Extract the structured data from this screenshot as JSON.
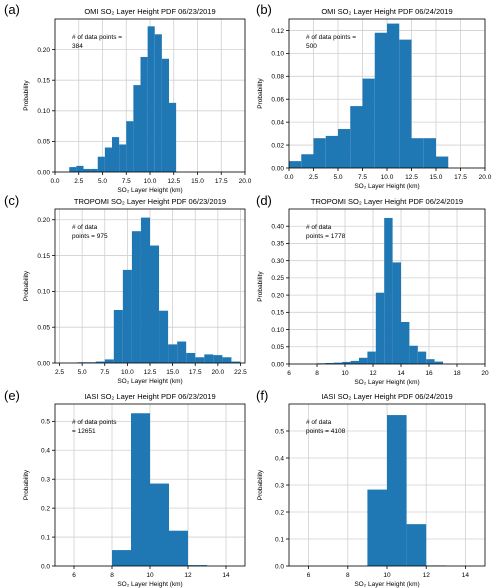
{
  "figure": {
    "x_axis_label": "SO₂ Layer Height (km)",
    "y_axis_label": "Probability"
  },
  "chart_data": [
    {
      "panel_label": "(a)",
      "type": "bar",
      "title": "OMI SO₂ Layer Height PDF 06/23/2019",
      "annotation": [
        "# of data points =",
        "384"
      ],
      "xlim": [
        0,
        20
      ],
      "ylim": [
        0,
        0.25
      ],
      "xticks": [
        0,
        2.5,
        5,
        7.5,
        10,
        12.5,
        15,
        17.5,
        20
      ],
      "xtick_labels": [
        "0.0",
        "2.5",
        "5.0",
        "7.5",
        "10.0",
        "12.5",
        "15.0",
        "17.5",
        "20.0"
      ],
      "yticks": [
        0,
        0.05,
        0.1,
        0.15,
        0.2
      ],
      "ytick_labels": [
        "0.00",
        "0.05",
        "0.10",
        "0.15",
        "0.20"
      ],
      "bin_width": 0.75,
      "bin_start": [
        1.5,
        2.25,
        3.0,
        3.75,
        4.5,
        5.25,
        6.0,
        6.75,
        7.5,
        8.25,
        9.0,
        9.75,
        10.5,
        11.25,
        12.0
      ],
      "values": [
        0.008,
        0.01,
        0.005,
        0.005,
        0.025,
        0.04,
        0.057,
        0.045,
        0.083,
        0.142,
        0.188,
        0.238,
        0.225,
        0.185,
        0.113
      ]
    },
    {
      "panel_label": "(b)",
      "type": "bar",
      "title": "OMI SO₂ Layer Height PDF 06/24/2019",
      "annotation": [
        "# of data points =",
        "500"
      ],
      "xlim": [
        0,
        20
      ],
      "ylim": [
        0,
        0.13
      ],
      "xticks": [
        0,
        2.5,
        5,
        7.5,
        10,
        12.5,
        15,
        17.5,
        20
      ],
      "xtick_labels": [
        "0.0",
        "2.5",
        "5.0",
        "7.5",
        "10.0",
        "12.5",
        "15.0",
        "17.5",
        "20.0"
      ],
      "yticks": [
        0,
        0.02,
        0.04,
        0.06,
        0.08,
        0.1,
        0.12
      ],
      "ytick_labels": [
        "0.00",
        "0.02",
        "0.04",
        "0.06",
        "0.08",
        "0.10",
        "0.12"
      ],
      "bin_width": 1.25,
      "bin_start": [
        0.0,
        1.25,
        2.5,
        3.75,
        5.0,
        6.25,
        7.5,
        8.75,
        10.0,
        11.25,
        12.5,
        13.75,
        15.0
      ],
      "values": [
        0.006,
        0.012,
        0.026,
        0.028,
        0.034,
        0.054,
        0.078,
        0.118,
        0.126,
        0.112,
        0.026,
        0.026,
        0.01
      ]
    },
    {
      "panel_label": "(c)",
      "type": "bar",
      "title": "TROPOMI SO₂ Layer Height PDF 06/23/2019",
      "annotation": [
        "# of data",
        "points = 975"
      ],
      "xlim": [
        2,
        23
      ],
      "ylim": [
        0,
        0.215
      ],
      "xticks": [
        2.5,
        5,
        7.5,
        10,
        12.5,
        15,
        17.5,
        20,
        22.5
      ],
      "xtick_labels": [
        "2.5",
        "5.0",
        "7.5",
        "10.0",
        "12.5",
        "15.0",
        "17.5",
        "20.0",
        "22.5"
      ],
      "yticks": [
        0,
        0.05,
        0.1,
        0.15,
        0.2
      ],
      "ytick_labels": [
        "0.00",
        "0.05",
        "0.10",
        "0.15",
        "0.20"
      ],
      "bin_width": 1.0,
      "bin_start": [
        4.5,
        5.5,
        6.5,
        7.5,
        8.5,
        9.5,
        10.5,
        11.5,
        12.5,
        13.5,
        14.5,
        15.5,
        16.5,
        17.5,
        18.5,
        19.5,
        20.5,
        21.5
      ],
      "values": [
        0.001,
        0.001,
        0.002,
        0.005,
        0.074,
        0.13,
        0.184,
        0.203,
        0.164,
        0.073,
        0.026,
        0.03,
        0.014,
        0.008,
        0.012,
        0.011,
        0.008,
        0.002
      ]
    },
    {
      "panel_label": "(d)",
      "type": "bar",
      "title": "TROPOMI SO₂ Layer Height PDF 06/24/2019",
      "annotation": [
        "# of data",
        "points = 1778"
      ],
      "xlim": [
        6,
        20
      ],
      "ylim": [
        0,
        0.45
      ],
      "xticks": [
        6,
        8,
        10,
        12,
        14,
        16,
        18,
        20
      ],
      "xtick_labels": [
        "6",
        "8",
        "10",
        "12",
        "14",
        "16",
        "18",
        "20"
      ],
      "yticks": [
        0,
        0.05,
        0.1,
        0.15,
        0.2,
        0.25,
        0.3,
        0.35,
        0.4
      ],
      "ytick_labels": [
        "0.00",
        "0.05",
        "0.10",
        "0.15",
        "0.20",
        "0.25",
        "0.30",
        "0.35",
        "0.40"
      ],
      "bin_width": 0.6,
      "bin_start": [
        8.0,
        8.6,
        9.2,
        9.8,
        10.4,
        11.0,
        11.6,
        12.2,
        12.8,
        13.4,
        14.0,
        14.6,
        15.2,
        15.8,
        16.4,
        17.0
      ],
      "values": [
        0.002,
        0.003,
        0.004,
        0.006,
        0.009,
        0.018,
        0.036,
        0.207,
        0.424,
        0.295,
        0.122,
        0.053,
        0.036,
        0.014,
        0.007,
        0.001
      ]
    },
    {
      "panel_label": "(e)",
      "type": "bar",
      "title": "IASI SO₂ Layer Height PDF 06/23/2019",
      "annotation": [
        "# of data points",
        "= 12651"
      ],
      "xlim": [
        5,
        15
      ],
      "ylim": [
        0,
        0.56
      ],
      "xticks": [
        6,
        8,
        10,
        12,
        14
      ],
      "xtick_labels": [
        "6",
        "8",
        "10",
        "12",
        "14"
      ],
      "yticks": [
        0,
        0.1,
        0.2,
        0.3,
        0.4,
        0.5
      ],
      "ytick_labels": [
        "0.0",
        "0.1",
        "0.2",
        "0.3",
        "0.4",
        "0.5"
      ],
      "bin_width": 1.0,
      "bin_start": [
        8.0,
        9.0,
        10.0,
        11.0,
        12.0
      ],
      "values": [
        0.055,
        0.528,
        0.285,
        0.122,
        0.003
      ]
    },
    {
      "panel_label": "(f)",
      "type": "bar",
      "title": "IASI SO₂ Layer Height PDF 06/24/2019",
      "annotation": [
        "# of data",
        "points = 4108"
      ],
      "xlim": [
        5,
        15
      ],
      "ylim": [
        0,
        0.6
      ],
      "xticks": [
        6,
        8,
        10,
        12,
        14
      ],
      "xtick_labels": [
        "6",
        "8",
        "10",
        "12",
        "14"
      ],
      "yticks": [
        0,
        0.1,
        0.2,
        0.3,
        0.4,
        0.5
      ],
      "ytick_labels": [
        "0.0",
        "0.1",
        "0.2",
        "0.3",
        "0.4",
        "0.5"
      ],
      "bin_width": 1.0,
      "bin_start": [
        9.0,
        10.0,
        11.0,
        12.0
      ],
      "values": [
        0.283,
        0.559,
        0.155,
        0.002
      ]
    }
  ],
  "colors": {
    "bar": "#1f77b4",
    "grid": "#d0d0d0",
    "axis": "#000000"
  }
}
